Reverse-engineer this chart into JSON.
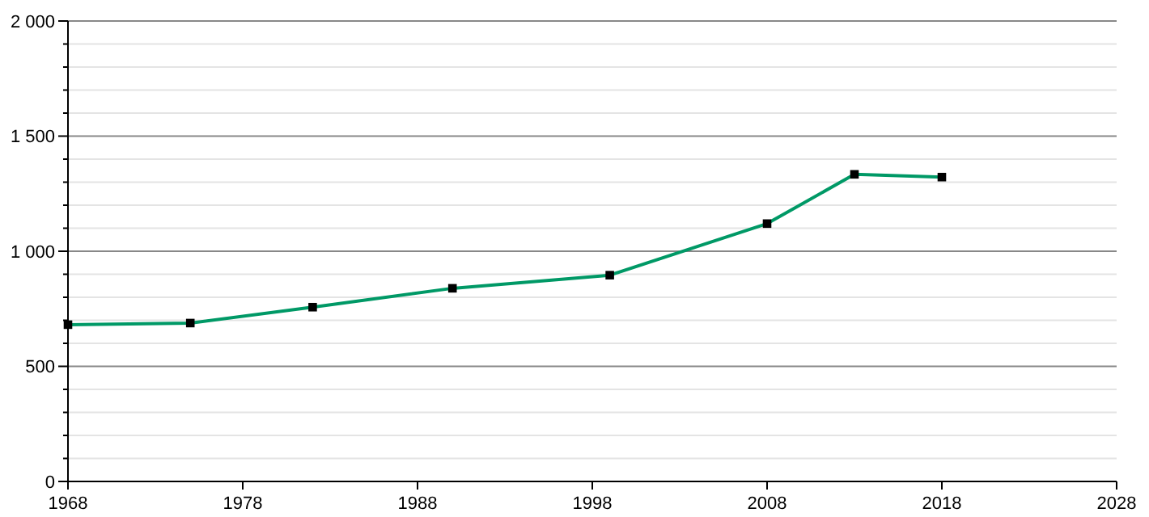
{
  "chart_data": {
    "type": "line",
    "x": [
      1968,
      1975,
      1982,
      1990,
      1999,
      2008,
      2013,
      2018
    ],
    "series": [
      {
        "color": "#009966",
        "values": [
          681,
          688,
          757,
          839,
          896,
          1120,
          1334,
          1322
        ]
      }
    ],
    "xlim": [
      1968,
      2028
    ],
    "xticks": [
      1968,
      1978,
      1988,
      1998,
      2008,
      2018,
      2028
    ],
    "ylim": [
      0,
      2000
    ],
    "yticks": [
      0,
      {
        "value": 100,
        "label": null
      },
      {
        "value": 200,
        "label": null
      },
      {
        "value": 300,
        "label": null
      },
      {
        "value": 400,
        "label": null
      },
      500,
      {
        "value": 600,
        "label": null
      },
      {
        "value": 700,
        "label": null
      },
      {
        "value": 800,
        "label": null
      },
      {
        "value": 900,
        "label": null
      },
      {
        "value": 1000,
        "label": "1 000"
      },
      {
        "value": 1100,
        "label": null
      },
      {
        "value": 1200,
        "label": null
      },
      {
        "value": 1300,
        "label": null
      },
      {
        "value": 1400,
        "label": null
      },
      {
        "value": 1500,
        "label": "1 500"
      },
      {
        "value": 1600,
        "label": null
      },
      {
        "value": 1700,
        "label": null
      },
      {
        "value": 1800,
        "label": null
      },
      {
        "value": 1900,
        "label": null
      },
      {
        "value": 2000,
        "label": "2 000"
      }
    ],
    "grid": "y",
    "marker": "square",
    "line_style": "solid"
  }
}
